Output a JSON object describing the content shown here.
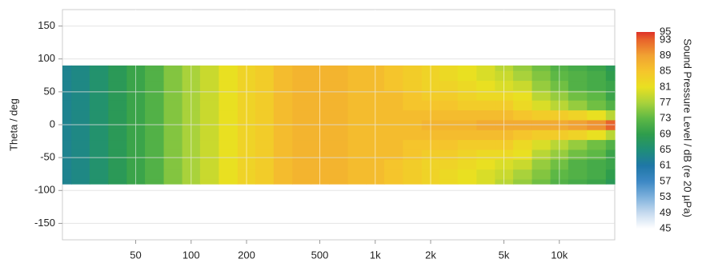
{
  "chart_data": {
    "type": "heatmap",
    "y_label": "Theta / deg",
    "colorbar_label": "Sound Pressure Level  / dB (re 20 µPa)",
    "xscale": "log",
    "xlim": [
      20,
      20000
    ],
    "xticks": [
      50,
      100,
      200,
      500,
      {
        "value": 1000,
        "label": "1k"
      },
      {
        "value": 2000,
        "label": "2k"
      },
      {
        "value": 5000,
        "label": "5k"
      },
      {
        "value": 10000,
        "label": "10k"
      }
    ],
    "ylim": [
      -175,
      175
    ],
    "yticks": [
      -150,
      -100,
      -50,
      0,
      50,
      100,
      150
    ],
    "grid": true,
    "x": [
      20,
      25,
      31.5,
      40,
      50,
      63,
      80,
      100,
      125,
      160,
      200,
      250,
      315,
      400,
      500,
      630,
      800,
      1000,
      1250,
      1600,
      2000,
      2500,
      3150,
      4000,
      5000,
      6300,
      8000,
      10000,
      12500,
      16000,
      20000
    ],
    "y": [
      -90,
      -75,
      -60,
      -45,
      -30,
      -15,
      0,
      15,
      30,
      45,
      60,
      75,
      90
    ],
    "values": [
      [
        63,
        64,
        66,
        68,
        70,
        72,
        75,
        77,
        79,
        81,
        83,
        84,
        86,
        87,
        87,
        87,
        86,
        86,
        85,
        84,
        83,
        82,
        81,
        80,
        78,
        76,
        74,
        72,
        71,
        70,
        68
      ],
      [
        63,
        64,
        66,
        68,
        70,
        72,
        75,
        77,
        79,
        81,
        83,
        84,
        86,
        87,
        87,
        87,
        86,
        86,
        85,
        84,
        83,
        82,
        81,
        80,
        79,
        77,
        75,
        73,
        72,
        71,
        69
      ],
      [
        63,
        64,
        66,
        68,
        70,
        72,
        75,
        77,
        79,
        81,
        83,
        84,
        86,
        87,
        87,
        87,
        86,
        86,
        85,
        84,
        83,
        83,
        82,
        81,
        80,
        79,
        76,
        74,
        72,
        71,
        70
      ],
      [
        63,
        64,
        66,
        68,
        70,
        72,
        75,
        77,
        79,
        81,
        83,
        84,
        86,
        87,
        87,
        87,
        86,
        86,
        86,
        85,
        84,
        84,
        83,
        82,
        82,
        81,
        78,
        76,
        74,
        73,
        70
      ],
      [
        63,
        64,
        66,
        68,
        70,
        72,
        75,
        77,
        79,
        81,
        83,
        84,
        86,
        87,
        87,
        87,
        86,
        86,
        86,
        85,
        85,
        85,
        84,
        84,
        84,
        82,
        80,
        78,
        76,
        74,
        72
      ],
      [
        63,
        64,
        66,
        68,
        70,
        72,
        75,
        77,
        79,
        81,
        83,
        84,
        86,
        87,
        87,
        87,
        86,
        86,
        86,
        86,
        86,
        86,
        86,
        86,
        86,
        85,
        84,
        84,
        83,
        81,
        78
      ],
      [
        63,
        64,
        66,
        68,
        70,
        72,
        75,
        77,
        79,
        81,
        83,
        84,
        86,
        87,
        87,
        87,
        86,
        86,
        86,
        86,
        87,
        87,
        87,
        88,
        88,
        88,
        88,
        88,
        89,
        90,
        93
      ],
      [
        63,
        64,
        66,
        68,
        70,
        72,
        75,
        77,
        79,
        81,
        83,
        84,
        86,
        87,
        87,
        87,
        86,
        86,
        86,
        86,
        86,
        86,
        86,
        86,
        86,
        85,
        84,
        84,
        83,
        81,
        78
      ],
      [
        63,
        64,
        66,
        68,
        70,
        72,
        75,
        77,
        79,
        81,
        83,
        84,
        86,
        87,
        87,
        87,
        86,
        86,
        86,
        85,
        85,
        85,
        84,
        84,
        84,
        82,
        80,
        78,
        76,
        74,
        72
      ],
      [
        63,
        64,
        66,
        68,
        70,
        72,
        75,
        77,
        79,
        81,
        83,
        84,
        86,
        87,
        87,
        87,
        86,
        86,
        86,
        85,
        84,
        84,
        83,
        82,
        82,
        81,
        78,
        76,
        74,
        73,
        70
      ],
      [
        63,
        64,
        66,
        68,
        70,
        72,
        75,
        77,
        79,
        81,
        83,
        84,
        86,
        87,
        87,
        87,
        86,
        86,
        85,
        84,
        83,
        83,
        82,
        81,
        80,
        79,
        76,
        74,
        72,
        71,
        70
      ],
      [
        63,
        64,
        66,
        68,
        70,
        72,
        75,
        77,
        79,
        81,
        83,
        84,
        86,
        87,
        87,
        87,
        86,
        86,
        85,
        84,
        83,
        82,
        81,
        80,
        79,
        77,
        75,
        73,
        72,
        71,
        69
      ],
      [
        63,
        64,
        66,
        68,
        70,
        72,
        75,
        77,
        79,
        81,
        83,
        84,
        86,
        87,
        87,
        87,
        86,
        86,
        85,
        84,
        83,
        82,
        81,
        80,
        78,
        76,
        74,
        72,
        71,
        70,
        68
      ]
    ],
    "zlim": [
      45,
      95
    ],
    "zticks": [
      45,
      49,
      53,
      57,
      61,
      65,
      69,
      73,
      77,
      81,
      85,
      89,
      93,
      95
    ],
    "zcolors": [
      "#ffffff",
      "#c6daef",
      "#7eb1dc",
      "#3d88c4",
      "#1f77a6",
      "#1f8e78",
      "#2f9d4c",
      "#5db845",
      "#a9d23b",
      "#e9e021",
      "#f5c52c",
      "#f1a232",
      "#e8642b",
      "#de3128"
    ]
  }
}
